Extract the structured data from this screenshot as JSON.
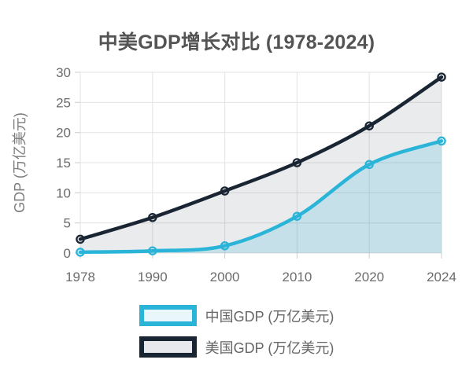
{
  "title": "中美GDP增长对比 (1978-2024)",
  "chart_data": {
    "type": "line",
    "title": "中美GDP增长对比 (1978-2024)",
    "categories": [
      "1978",
      "1990",
      "2000",
      "2010",
      "2020",
      "2024"
    ],
    "series": [
      {
        "id": "china-gdp",
        "name": "中国GDP (万亿美元)",
        "values": [
          0.15,
          0.36,
          1.2,
          6.1,
          14.7,
          18.6
        ],
        "color": "#29b4d8",
        "area_fill": "rgba(41,180,216,0.18)",
        "legend_fill": "#e9f6fb"
      },
      {
        "id": "us-gdp",
        "name": "美国GDP (万亿美元)",
        "values": [
          2.3,
          5.9,
          10.3,
          15.0,
          21.1,
          29.2
        ],
        "color": "#1a2533",
        "area_fill": "rgba(26,37,51,0.09)",
        "legend_fill": "#e7e9ec"
      }
    ],
    "xlabel": "",
    "ylabel": "GDP (万亿美元)",
    "ylim": [
      0,
      30
    ],
    "yticks": [
      0,
      5,
      10,
      15,
      20,
      25,
      30
    ],
    "grid": true,
    "legend_position": "bottom",
    "colors": {
      "gridline": "#e3e3e3",
      "tick_mark": "#cccccc",
      "tick_label": "#6b6b6b",
      "title_text": "#545454",
      "background": "#ffffff"
    }
  }
}
